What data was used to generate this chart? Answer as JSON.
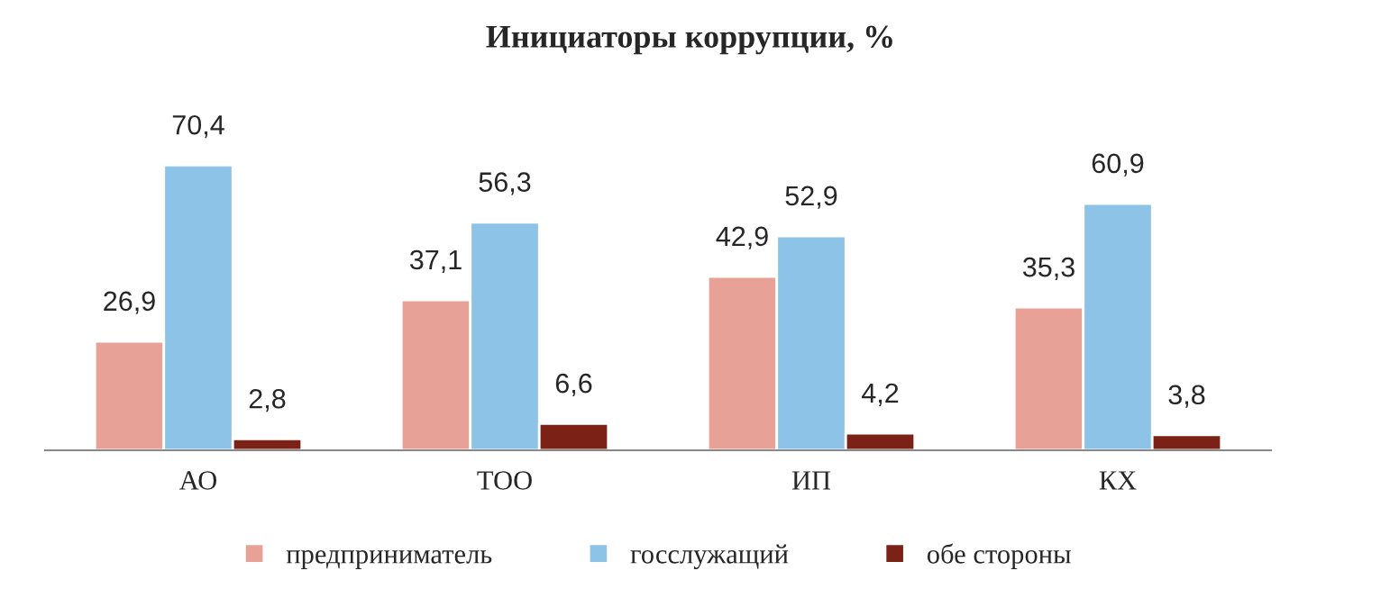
{
  "chart_data": {
    "type": "bar",
    "title": "Инициаторы коррупции, %",
    "categories": [
      "АО",
      "ТОО",
      "ИП",
      "КХ"
    ],
    "series": [
      {
        "name": "предприниматель",
        "color": "#e8a196",
        "values": [
          26.9,
          37.1,
          42.9,
          35.3
        ],
        "value_labels": [
          "26,9",
          "37,1",
          "42,9",
          "35,3"
        ]
      },
      {
        "name": "госслужащий",
        "color": "#8ec3e8",
        "values": [
          70.4,
          56.3,
          52.9,
          60.9
        ],
        "value_labels": [
          "70,4",
          "56,3",
          "52,9",
          "60,9"
        ]
      },
      {
        "name": "обе стороны",
        "color": "#7b2115",
        "values": [
          2.8,
          6.6,
          4.2,
          3.8
        ],
        "value_labels": [
          "2,8",
          "6,6",
          "4,2",
          "3,8"
        ]
      }
    ],
    "legend": "bottom",
    "grid": false
  }
}
